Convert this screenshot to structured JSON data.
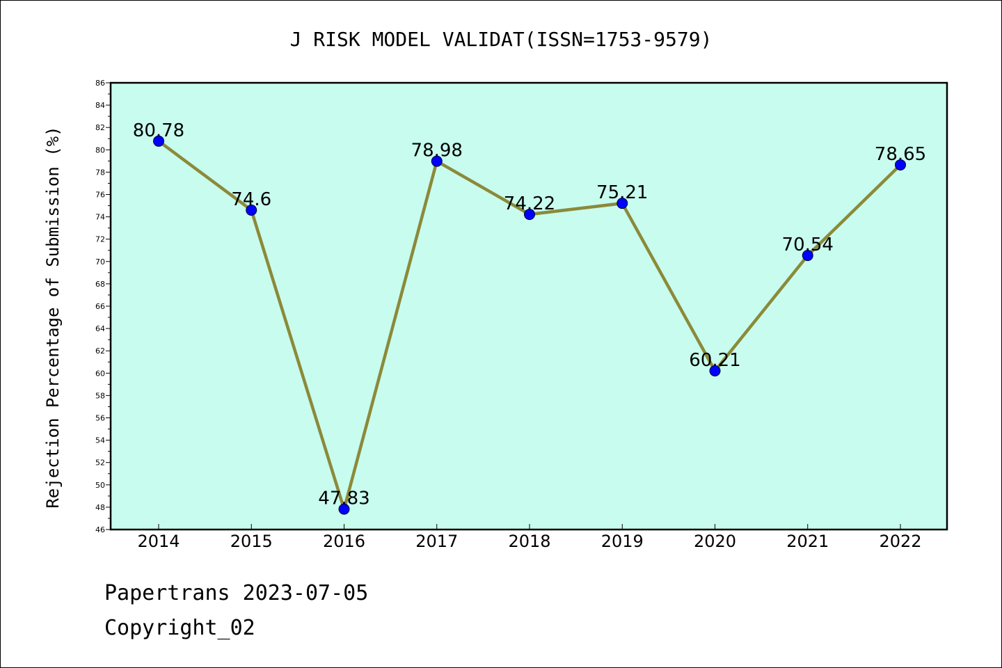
{
  "chart_data": {
    "type": "line",
    "title": "J RISK MODEL VALIDAT(ISSN=1753-9579)",
    "xlabel": "",
    "ylabel": "Rejection Percentage of Submission (%)",
    "categories": [
      "2014",
      "2015",
      "2016",
      "2017",
      "2018",
      "2019",
      "2020",
      "2021",
      "2022"
    ],
    "series": [
      {
        "values": [
          80.78,
          74.6,
          47.83,
          78.98,
          74.22,
          75.21,
          60.21,
          70.54,
          78.65
        ]
      }
    ],
    "data_labels": [
      "80.78",
      "74.6",
      "47.83",
      "78.98",
      "74.22",
      "75.21",
      "60.21",
      "70.54",
      "78.65"
    ],
    "ylim": [
      46,
      86
    ],
    "y_ticks": [
      "46",
      "48",
      "50",
      "52",
      "54",
      "56",
      "58",
      "60",
      "62",
      "64",
      "66",
      "68",
      "70",
      "72",
      "74",
      "76",
      "78",
      "80",
      "82",
      "84",
      "86"
    ],
    "grid": false,
    "colors": {
      "plot_background": "#c8fcee",
      "line": "#8b8a3a",
      "marker": "#0000ff"
    }
  },
  "footer": {
    "line1": "Papertrans 2023-07-05",
    "line2": "Copyright_02"
  }
}
